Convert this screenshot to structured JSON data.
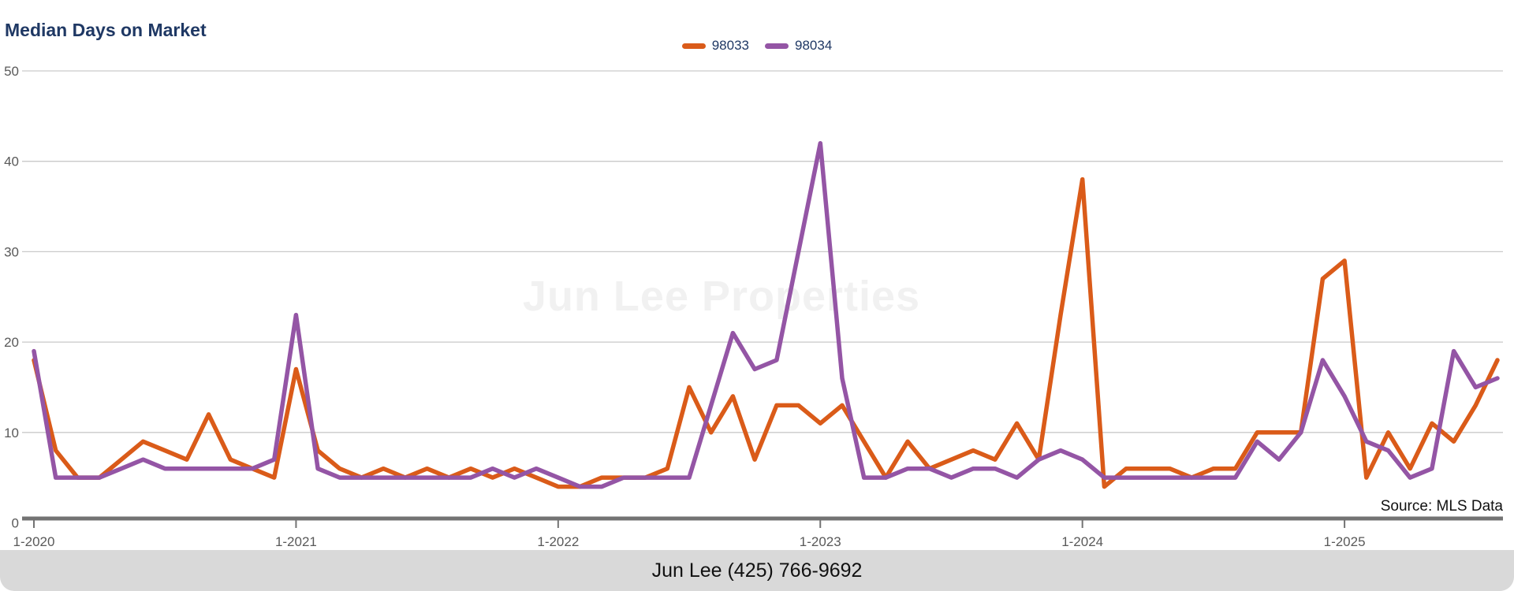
{
  "title": "Median Days on Market",
  "watermark": "Jun Lee Properties",
  "source_note": "Source: MLS Data",
  "footer": {
    "contact": "Jun Lee (425) 766-9692"
  },
  "legend": {
    "items": [
      {
        "label": "98033",
        "color": "#da5b19"
      },
      {
        "label": "98034",
        "color": "#9455a5"
      }
    ]
  },
  "colors": {
    "title_text": "#1f3864",
    "tick_text": "#595959",
    "gridline": "#c9c9c9",
    "axis": "#737373",
    "series_98033": "#da5b19",
    "series_98034": "#9455a5",
    "watermark": "#f1f1f1",
    "footer_bg": "#d9d9d9"
  },
  "chart_data": {
    "type": "line",
    "title": "Median Days on Market",
    "xlabel": "",
    "ylabel": "",
    "ylim": [
      0,
      50
    ],
    "y_ticks": [
      0,
      10,
      20,
      30,
      40,
      50
    ],
    "grid": true,
    "legend_position": "top-center",
    "x_tick_labels": [
      "1-2020",
      "1-2021",
      "1-2022",
      "1-2023",
      "1-2024",
      "1-2025"
    ],
    "x_tick_month_indices": [
      0,
      12,
      24,
      36,
      48,
      60
    ],
    "months": [
      "2020-01",
      "2020-02",
      "2020-03",
      "2020-04",
      "2020-05",
      "2020-06",
      "2020-07",
      "2020-08",
      "2020-09",
      "2020-10",
      "2020-11",
      "2020-12",
      "2021-01",
      "2021-02",
      "2021-03",
      "2021-04",
      "2021-05",
      "2021-06",
      "2021-07",
      "2021-08",
      "2021-09",
      "2021-10",
      "2021-11",
      "2021-12",
      "2022-01",
      "2022-02",
      "2022-03",
      "2022-04",
      "2022-05",
      "2022-06",
      "2022-07",
      "2022-08",
      "2022-09",
      "2022-10",
      "2022-11",
      "2022-12",
      "2023-01",
      "2023-02",
      "2023-03",
      "2023-04",
      "2023-05",
      "2023-06",
      "2023-07",
      "2023-08",
      "2023-09",
      "2023-10",
      "2023-11",
      "2023-12",
      "2024-01",
      "2024-02",
      "2024-03",
      "2024-04",
      "2024-05",
      "2024-06",
      "2024-07",
      "2024-08",
      "2024-09",
      "2024-10",
      "2024-11",
      "2024-12",
      "2025-01",
      "2025-02",
      "2025-03",
      "2025-04",
      "2025-05",
      "2025-06",
      "2025-07",
      "2025-08"
    ],
    "series": [
      {
        "name": "98033",
        "color": "#da5b19",
        "values": [
          18,
          8,
          5,
          5,
          7,
          9,
          8,
          7,
          12,
          7,
          6,
          5,
          17,
          8,
          6,
          5,
          6,
          5,
          6,
          5,
          6,
          5,
          6,
          5,
          4,
          4,
          5,
          5,
          5,
          6,
          15,
          10,
          14,
          7,
          13,
          13,
          11,
          13,
          9,
          5,
          9,
          6,
          7,
          8,
          7,
          11,
          7,
          23,
          38,
          4,
          6,
          6,
          6,
          5,
          6,
          6,
          10,
          10,
          10,
          27,
          29,
          5,
          10,
          6,
          11,
          9,
          13,
          18
        ]
      },
      {
        "name": "98034",
        "color": "#9455a5",
        "values": [
          19,
          5,
          5,
          5,
          6,
          7,
          6,
          6,
          6,
          6,
          6,
          7,
          23,
          6,
          5,
          5,
          5,
          5,
          5,
          5,
          5,
          6,
          5,
          6,
          5,
          4,
          4,
          5,
          5,
          5,
          5,
          13,
          21,
          17,
          18,
          30,
          42,
          16,
          5,
          5,
          6,
          6,
          5,
          6,
          6,
          5,
          7,
          8,
          7,
          5,
          5,
          5,
          5,
          5,
          5,
          5,
          9,
          7,
          10,
          18,
          14,
          9,
          8,
          5,
          6,
          19,
          15,
          16
        ]
      }
    ]
  }
}
